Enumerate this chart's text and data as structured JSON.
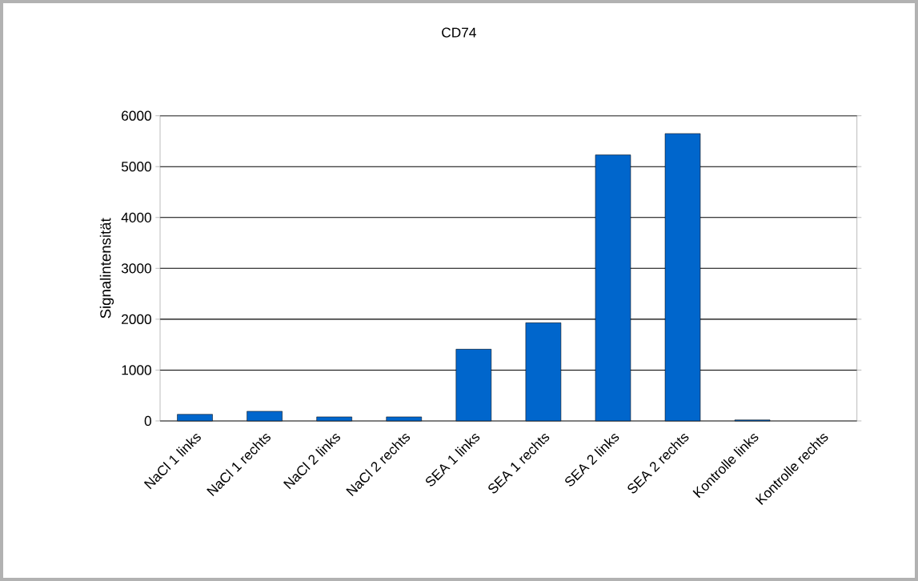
{
  "chart_data": {
    "type": "bar",
    "title": "CD74",
    "ylabel": "Signalintensität",
    "categories": [
      "NaCl 1 links",
      "NaCl 1 rechts",
      "NaCl 2 links",
      "NaCl 2 rechts",
      "SEA 1 links",
      "SEA 1 rechts",
      "SEA 2 links",
      "SEA 2 rechts",
      "Kontrolle links",
      "Kontrolle rechts"
    ],
    "values": [
      130,
      190,
      80,
      80,
      1410,
      1930,
      5230,
      5650,
      20,
      null
    ],
    "color": "#0066cc",
    "ylim": [
      0,
      6000
    ],
    "yticks": [
      0,
      1000,
      2000,
      3000,
      4000,
      5000,
      6000
    ],
    "grid": "y"
  }
}
